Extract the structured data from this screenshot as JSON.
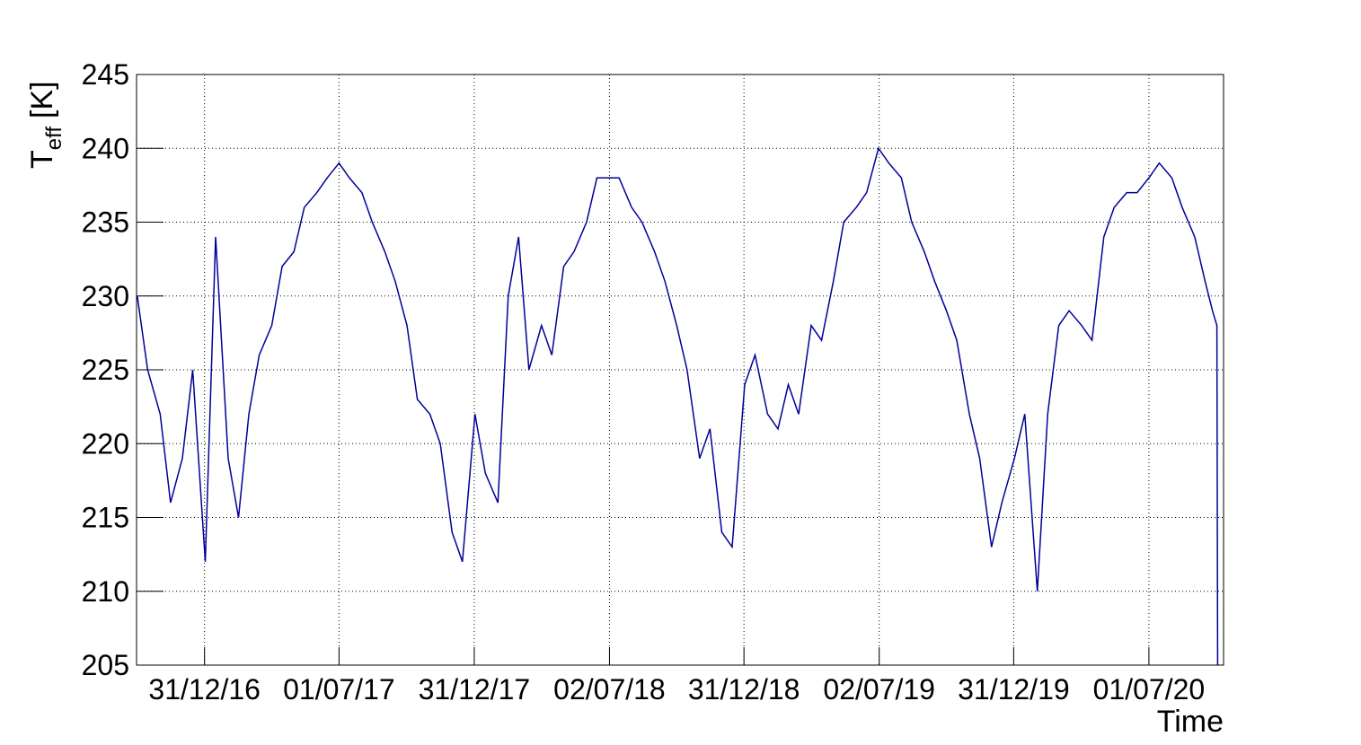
{
  "chart_data": {
    "type": "line",
    "ylabel": {
      "main": "T",
      "sub": "eff",
      "unit": "[K]"
    },
    "xlabel": "Time",
    "color": "#000099",
    "grid": true,
    "xlim": [
      "2016-09-30",
      "2020-10-10"
    ],
    "xticks": [
      {
        "value": "2016-12-31",
        "label": "31/12/16"
      },
      {
        "value": "2017-07-01",
        "label": "01/07/17"
      },
      {
        "value": "2017-12-31",
        "label": "31/12/17"
      },
      {
        "value": "2018-07-02",
        "label": "02/07/18"
      },
      {
        "value": "2018-12-31",
        "label": "31/12/18"
      },
      {
        "value": "2019-07-02",
        "label": "02/07/19"
      },
      {
        "value": "2019-12-31",
        "label": "31/12/19"
      },
      {
        "value": "2020-07-01",
        "label": "01/07/20"
      }
    ],
    "ylim": [
      205,
      245
    ],
    "yticks": [
      205,
      210,
      215,
      220,
      225,
      230,
      235,
      240,
      245
    ],
    "x": [
      "2016-10-01",
      "2016-10-15",
      "2016-11-01",
      "2016-11-15",
      "2016-12-01",
      "2016-12-15",
      "2017-01-01",
      "2017-01-15",
      "2017-02-01",
      "2017-02-15",
      "2017-03-01",
      "2017-03-15",
      "2017-04-01",
      "2017-04-15",
      "2017-05-01",
      "2017-05-15",
      "2017-06-01",
      "2017-06-15",
      "2017-07-01",
      "2017-07-15",
      "2017-08-01",
      "2017-08-15",
      "2017-09-01",
      "2017-09-15",
      "2017-10-01",
      "2017-10-15",
      "2017-11-01",
      "2017-11-15",
      "2017-12-01",
      "2017-12-15",
      "2018-01-01",
      "2018-01-15",
      "2018-02-01",
      "2018-02-15",
      "2018-03-01",
      "2018-03-15",
      "2018-04-01",
      "2018-04-15",
      "2018-05-01",
      "2018-05-15",
      "2018-06-01",
      "2018-06-15",
      "2018-07-01",
      "2018-07-15",
      "2018-08-01",
      "2018-08-15",
      "2018-09-01",
      "2018-09-15",
      "2018-10-01",
      "2018-10-15",
      "2018-11-01",
      "2018-11-15",
      "2018-12-01",
      "2018-12-15",
      "2019-01-01",
      "2019-01-15",
      "2019-02-01",
      "2019-02-15",
      "2019-03-01",
      "2019-03-15",
      "2019-04-01",
      "2019-04-15",
      "2019-05-01",
      "2019-05-15",
      "2019-06-01",
      "2019-06-15",
      "2019-07-01",
      "2019-07-15",
      "2019-08-01",
      "2019-08-15",
      "2019-09-01",
      "2019-09-15",
      "2019-10-01",
      "2019-10-15",
      "2019-11-01",
      "2019-11-15",
      "2019-12-01",
      "2019-12-15",
      "2020-01-01",
      "2020-01-15",
      "2020-02-01",
      "2020-02-15",
      "2020-03-01",
      "2020-03-15",
      "2020-04-01",
      "2020-04-15",
      "2020-05-01",
      "2020-05-15",
      "2020-06-01",
      "2020-06-15",
      "2020-07-01",
      "2020-07-15",
      "2020-08-01",
      "2020-08-15",
      "2020-09-01",
      "2020-09-15",
      "2020-09-25",
      "2020-10-01",
      "2020-10-02"
    ],
    "values": [
      230,
      225,
      222,
      216,
      219,
      225,
      212,
      234,
      219,
      215,
      222,
      226,
      228,
      232,
      233,
      236,
      237,
      238,
      239,
      238,
      237,
      235,
      233,
      231,
      228,
      223,
      222,
      220,
      214,
      212,
      222,
      218,
      216,
      230,
      234,
      225,
      228,
      226,
      232,
      233,
      235,
      238,
      238,
      238,
      236,
      235,
      233,
      231,
      228,
      225,
      219,
      221,
      214,
      213,
      224,
      226,
      222,
      221,
      224,
      222,
      228,
      227,
      231,
      235,
      236,
      237,
      240,
      239,
      238,
      235,
      233,
      231,
      229,
      227,
      222,
      219,
      213,
      216,
      219,
      222,
      210,
      222,
      228,
      229,
      228,
      227,
      234,
      236,
      237,
      237,
      238,
      239,
      238,
      236,
      234,
      231,
      229,
      228,
      205
    ]
  }
}
